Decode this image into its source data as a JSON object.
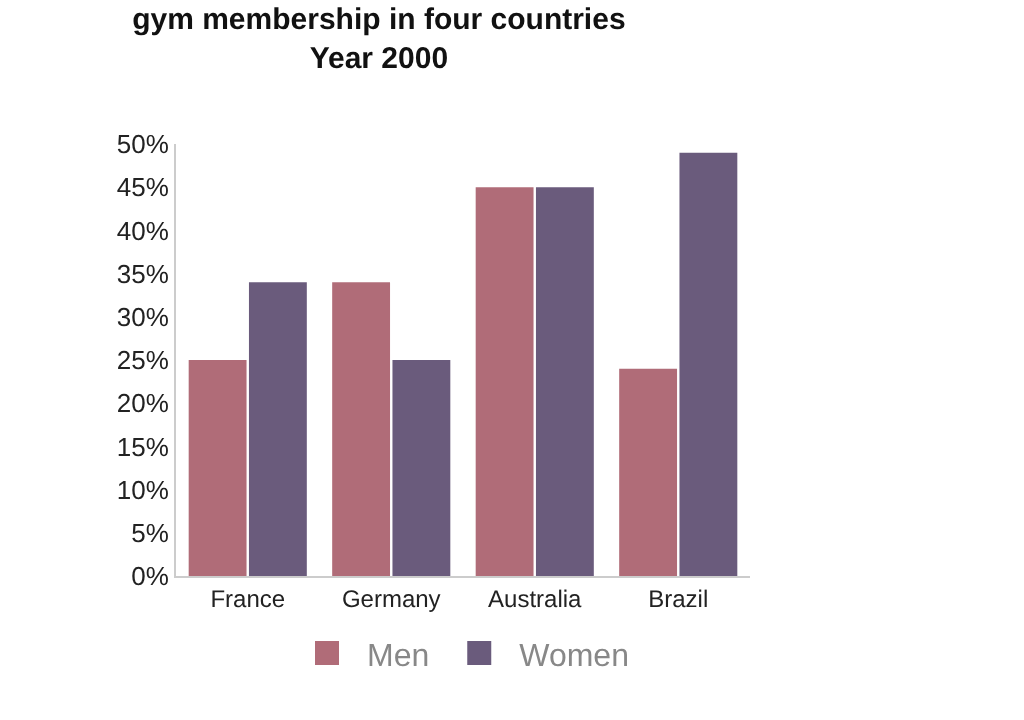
{
  "chart_data": {
    "type": "bar",
    "title": "gym membership in four countries\nYear 2000",
    "categories": [
      "France",
      "Germany",
      "Australia",
      "Brazil"
    ],
    "series": [
      {
        "name": "Men",
        "color": "#b06c78",
        "values": [
          25,
          34,
          45,
          24
        ]
      },
      {
        "name": "Women",
        "color": "#6a5b7c",
        "values": [
          34,
          25,
          45,
          49
        ]
      }
    ],
    "ylim": [
      0,
      50
    ],
    "yticks": [
      {
        "value": 0,
        "label": "0%"
      },
      {
        "value": 5,
        "label": "5%"
      },
      {
        "value": 10,
        "label": "10%"
      },
      {
        "value": 15,
        "label": "15%"
      },
      {
        "value": 20,
        "label": "20%"
      },
      {
        "value": 25,
        "label": "25%"
      },
      {
        "value": 30,
        "label": "30%"
      },
      {
        "value": 35,
        "label": "35%"
      },
      {
        "value": 40,
        "label": "40%"
      },
      {
        "value": 45,
        "label": "45%"
      },
      {
        "value": 50,
        "label": "50%"
      }
    ],
    "legend": "bottom"
  }
}
